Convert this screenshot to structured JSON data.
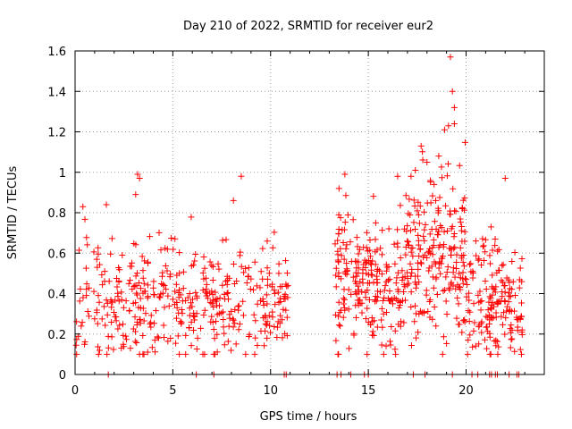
{
  "chart_data": {
    "type": "scatter",
    "title": "Day 210 of 2022, SRMTID for receiver eur2",
    "xlabel": "GPS time / hours",
    "ylabel": "SRMTID / TECUs",
    "xlim": [
      0,
      24
    ],
    "ylim": [
      0,
      1.6
    ],
    "xticks": [
      0,
      5,
      10,
      15,
      20
    ],
    "xtick_labels": [
      "0",
      "5",
      "10",
      "15",
      "20"
    ],
    "yticks": [
      0,
      0.2,
      0.4,
      0.6,
      0.8,
      1.0,
      1.2,
      1.4,
      1.6
    ],
    "ytick_labels": [
      "0",
      "0.2",
      "0.4",
      "0.6",
      "0.8",
      "1",
      "1.2",
      "1.4",
      "1.6"
    ],
    "grid": true,
    "marker": "+",
    "marker_color": "#ff0000",
    "series": [
      {
        "name": "SRMTID",
        "segments": [
          {
            "x": [
              0.0,
              10.9
            ],
            "y_base": 0.36,
            "y_spread": 0.14,
            "count": 430
          },
          {
            "x": [
              13.3,
              16.9
            ],
            "y_base": 0.45,
            "y_spread": 0.16,
            "count": 230
          },
          {
            "x": [
              16.9,
              20.0
            ],
            "y_base": 0.62,
            "y_spread": 0.2,
            "count": 220
          },
          {
            "x": [
              20.0,
              22.9
            ],
            "y_base": 0.35,
            "y_spread": 0.16,
            "count": 170
          }
        ],
        "peaks": [
          {
            "x": 0.4,
            "y": 0.83
          },
          {
            "x": 1.6,
            "y": 0.84
          },
          {
            "x": 3.2,
            "y": 0.99
          },
          {
            "x": 3.3,
            "y": 0.97
          },
          {
            "x": 3.1,
            "y": 0.89
          },
          {
            "x": 8.1,
            "y": 0.86
          },
          {
            "x": 8.5,
            "y": 0.98
          },
          {
            "x": 13.8,
            "y": 0.99
          },
          {
            "x": 13.5,
            "y": 0.92
          },
          {
            "x": 16.5,
            "y": 0.98
          },
          {
            "x": 17.7,
            "y": 1.13
          },
          {
            "x": 18.0,
            "y": 1.05
          },
          {
            "x": 18.6,
            "y": 1.08
          },
          {
            "x": 18.9,
            "y": 1.21
          },
          {
            "x": 19.1,
            "y": 1.23
          },
          {
            "x": 19.3,
            "y": 1.4
          },
          {
            "x": 19.4,
            "y": 1.32
          },
          {
            "x": 19.2,
            "y": 1.57
          },
          {
            "x": 19.4,
            "y": 1.24
          },
          {
            "x": 22.0,
            "y": 0.97
          }
        ],
        "zero_points_x": [
          1.7,
          6.2,
          7.1,
          10.7,
          10.8,
          13.4,
          13.6,
          14.1,
          14.8,
          15.0,
          17.3,
          17.9,
          19.3,
          20.3,
          20.6,
          21.2,
          21.3,
          21.5,
          21.6,
          22.2,
          22.6,
          22.7
        ]
      }
    ]
  }
}
